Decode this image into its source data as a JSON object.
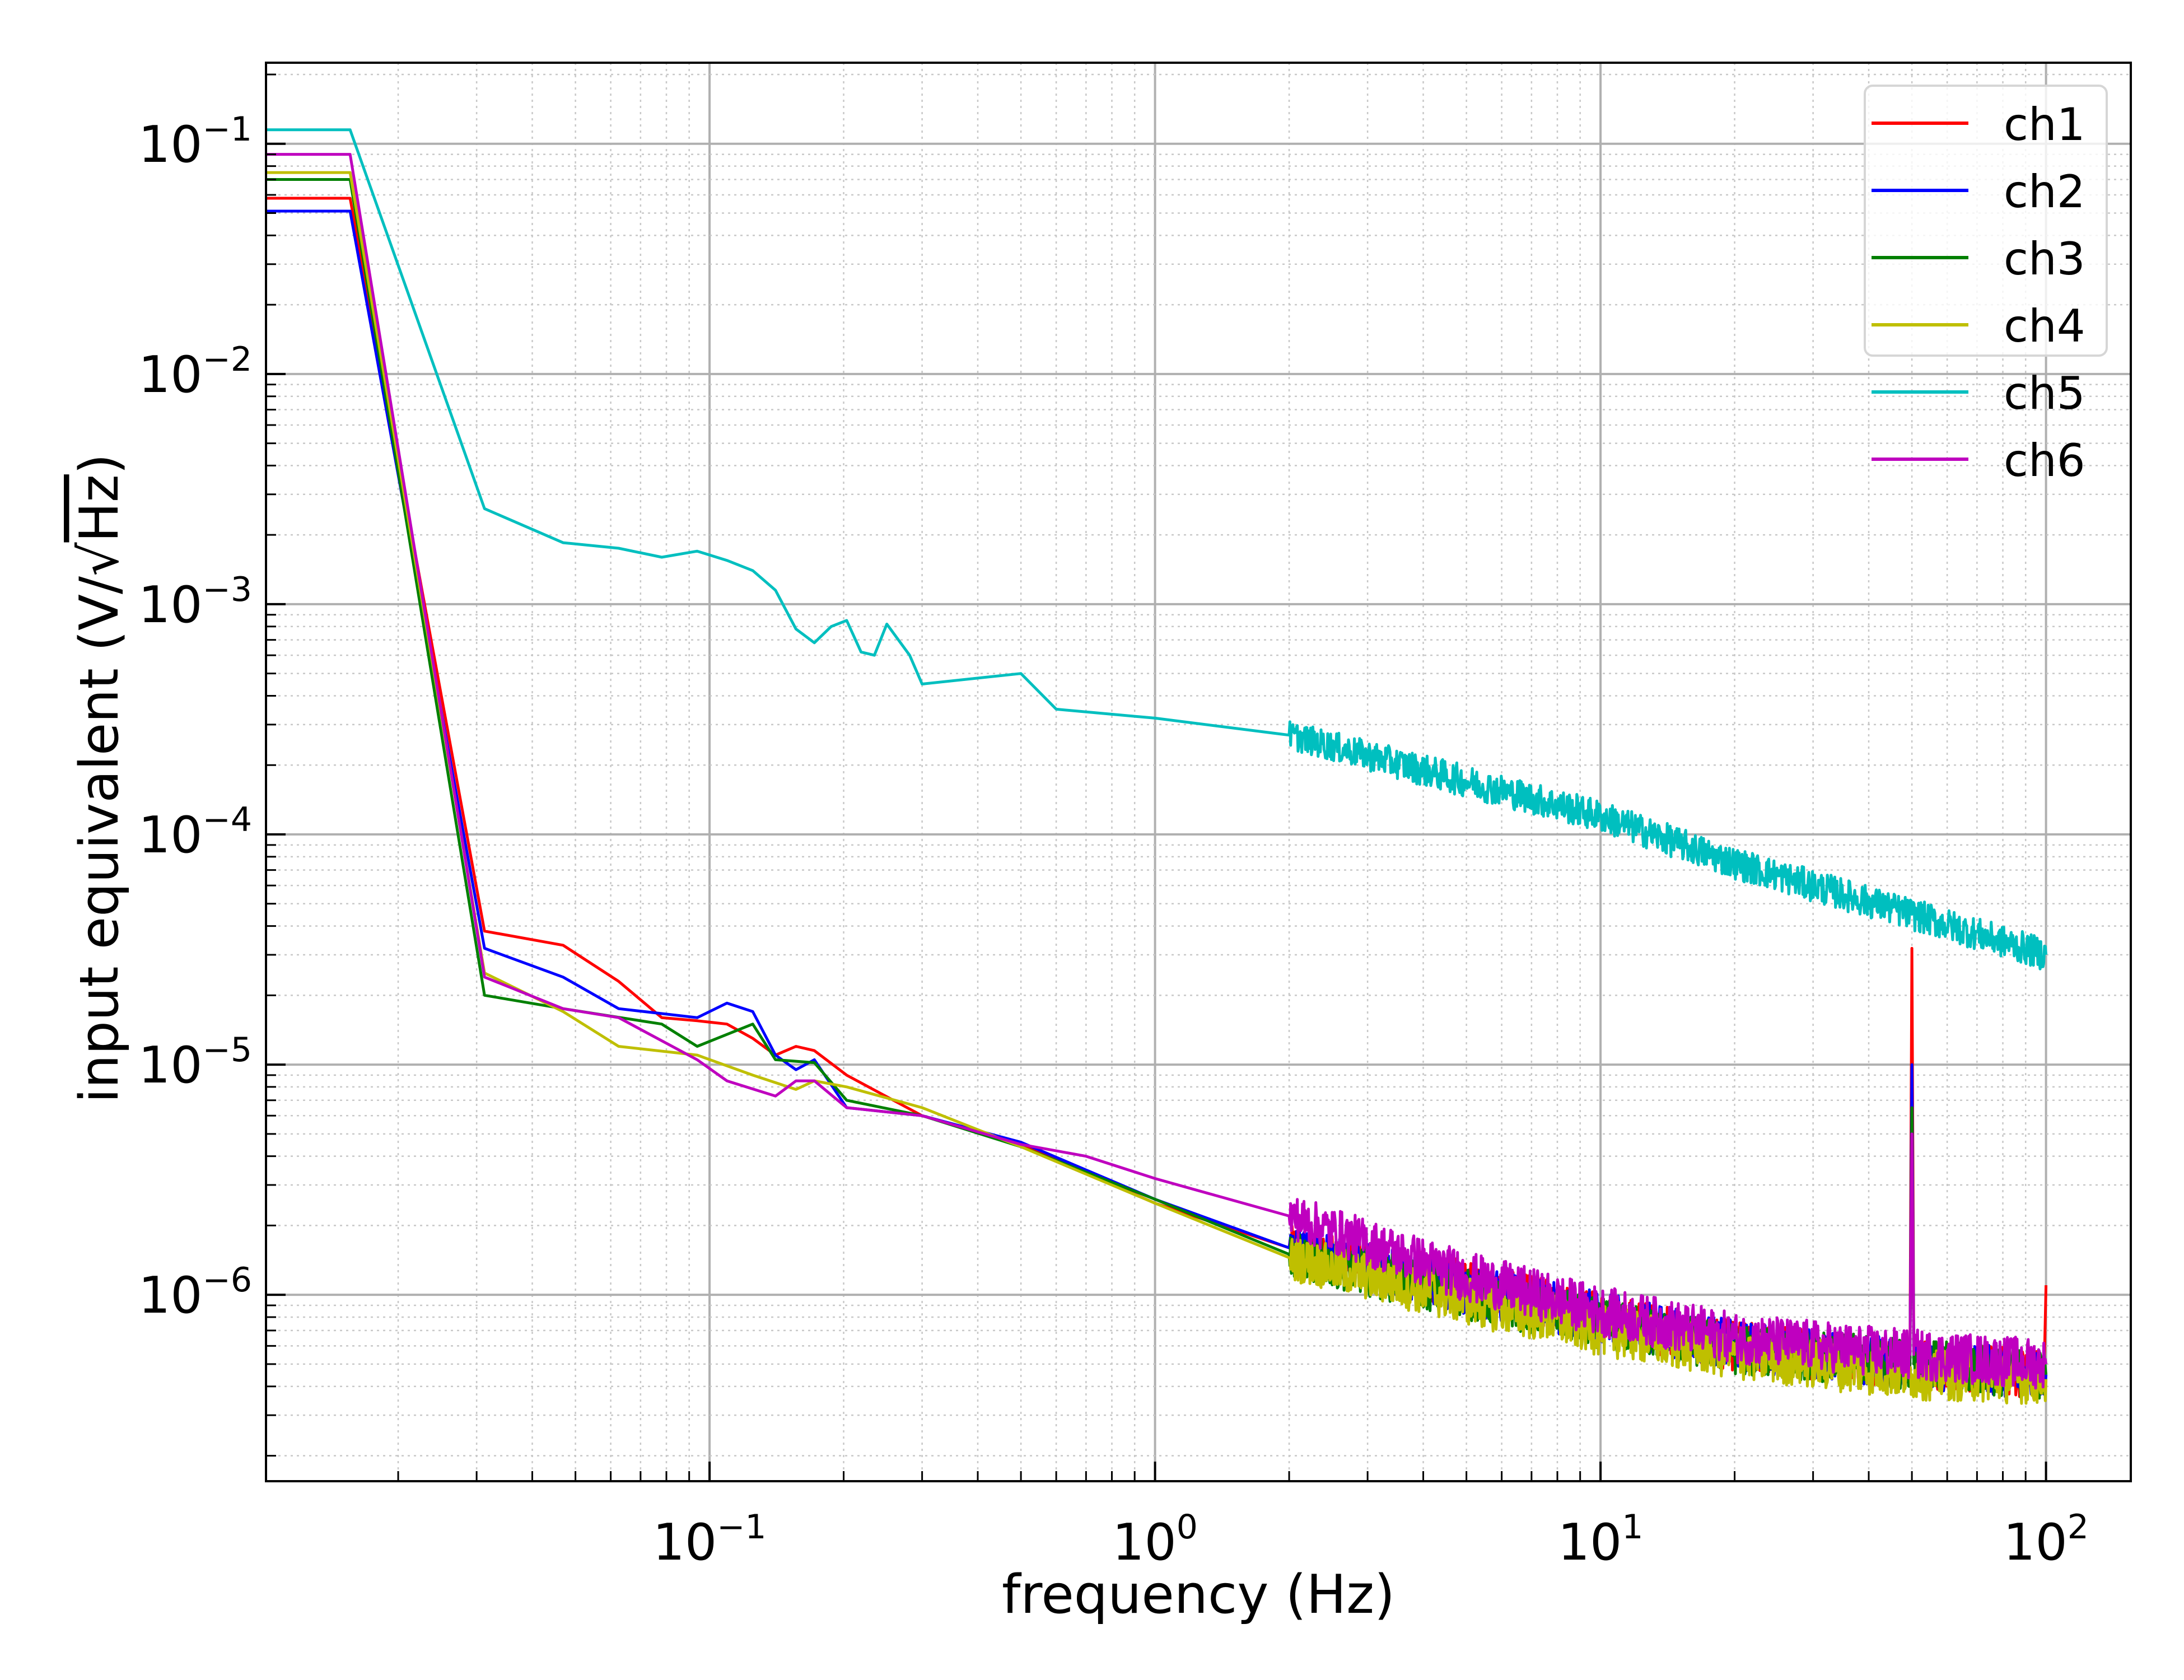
{
  "chart_data": {
    "type": "line",
    "title": "",
    "xlabel": "frequency (Hz)",
    "ylabel": {
      "prefix": "input equivalent (V/√",
      "radicand": "Hz",
      "suffix": ")"
    },
    "xscale": "log",
    "yscale": "log",
    "xlim": [
      0.0101,
      155
    ],
    "ylim": [
      1.55e-07,
      0.225
    ],
    "grid": {
      "major": true,
      "minor": true
    },
    "legend_placement": "top-right",
    "x_ticks": [
      {
        "value": 0.1,
        "base": "10",
        "exp": "−1"
      },
      {
        "value": 1,
        "base": "10",
        "exp": "0"
      },
      {
        "value": 10,
        "base": "10",
        "exp": "1"
      },
      {
        "value": 100,
        "base": "10",
        "exp": "2"
      }
    ],
    "y_ticks": [
      {
        "value": 0.1,
        "base": "10",
        "exp": "−1"
      },
      {
        "value": 0.01,
        "base": "10",
        "exp": "−2"
      },
      {
        "value": 0.001,
        "base": "10",
        "exp": "−3"
      },
      {
        "value": 0.0001,
        "base": "10",
        "exp": "−4"
      },
      {
        "value": 1e-05,
        "base": "10",
        "exp": "−5"
      },
      {
        "value": 1e-06,
        "base": "10",
        "exp": "−6"
      }
    ],
    "series": [
      {
        "name": "ch1",
        "color": "#ff0000",
        "points": [
          [
            0.0101,
            0.058
          ],
          [
            0.0156,
            0.058
          ],
          [
            0.03125,
            3.8e-05
          ],
          [
            0.0469,
            3.3e-05
          ],
          [
            0.0625,
            2.3e-05
          ],
          [
            0.0781,
            1.6e-05
          ],
          [
            0.0938,
            1.55e-05
          ],
          [
            0.1094,
            1.5e-05
          ],
          [
            0.125,
            1.3e-05
          ],
          [
            0.1406,
            1.1e-05
          ],
          [
            0.1563,
            1.2e-05
          ],
          [
            0.1719,
            1.15e-05
          ],
          [
            0.2031,
            9e-06
          ],
          [
            0.3,
            6e-06
          ],
          [
            0.5,
            4.5e-06
          ],
          [
            1,
            2.5e-06
          ],
          [
            2,
            1.6e-06
          ],
          [
            5,
            1.1e-06
          ],
          [
            10,
            8e-07
          ],
          [
            20,
            6e-07
          ],
          [
            49.5,
            5e-07
          ],
          [
            50,
            3.2e-05
          ],
          [
            50.5,
            5e-07
          ],
          [
            99,
            4.5e-07
          ],
          [
            100,
            1.1e-06
          ]
        ]
      },
      {
        "name": "ch2",
        "color": "#0000ff",
        "points": [
          [
            0.0101,
            0.051
          ],
          [
            0.0156,
            0.051
          ],
          [
            0.03125,
            3.2e-05
          ],
          [
            0.0469,
            2.4e-05
          ],
          [
            0.0625,
            1.75e-05
          ],
          [
            0.0938,
            1.6e-05
          ],
          [
            0.1094,
            1.85e-05
          ],
          [
            0.125,
            1.7e-05
          ],
          [
            0.1406,
            1.1e-05
          ],
          [
            0.1563,
            9.5e-06
          ],
          [
            0.1719,
            1.05e-05
          ],
          [
            0.2031,
            6.5e-06
          ],
          [
            0.3,
            6e-06
          ],
          [
            0.5,
            4.6e-06
          ],
          [
            1,
            2.6e-06
          ],
          [
            2,
            1.6e-06
          ],
          [
            5,
            1.05e-06
          ],
          [
            10,
            8e-07
          ],
          [
            20,
            6e-07
          ],
          [
            49.5,
            5e-07
          ],
          [
            50,
            1e-05
          ],
          [
            50.5,
            5e-07
          ],
          [
            100,
            4.5e-07
          ]
        ]
      },
      {
        "name": "ch3",
        "color": "#008000",
        "points": [
          [
            0.0101,
            0.07
          ],
          [
            0.0156,
            0.07
          ],
          [
            0.03125,
            2e-05
          ],
          [
            0.0469,
            1.75e-05
          ],
          [
            0.0781,
            1.5e-05
          ],
          [
            0.0938,
            1.2e-05
          ],
          [
            0.125,
            1.5e-05
          ],
          [
            0.1406,
            1.05e-05
          ],
          [
            0.1719,
            1.02e-05
          ],
          [
            0.2031,
            7e-06
          ],
          [
            0.3,
            6e-06
          ],
          [
            0.5,
            4.4e-06
          ],
          [
            1,
            2.6e-06
          ],
          [
            2,
            1.5e-06
          ],
          [
            5,
            1e-06
          ],
          [
            10,
            7.5e-07
          ],
          [
            20,
            5.8e-07
          ],
          [
            49.5,
            5e-07
          ],
          [
            50,
            6.5e-06
          ],
          [
            50.5,
            5e-07
          ],
          [
            100,
            4.5e-07
          ]
        ]
      },
      {
        "name": "ch4",
        "color": "#bfbf00",
        "points": [
          [
            0.0101,
            0.075
          ],
          [
            0.0156,
            0.075
          ],
          [
            0.03125,
            2.5e-05
          ],
          [
            0.0469,
            1.7e-05
          ],
          [
            0.0625,
            1.2e-05
          ],
          [
            0.0938,
            1.1e-05
          ],
          [
            0.125,
            9e-06
          ],
          [
            0.1563,
            7.8e-06
          ],
          [
            0.1719,
            8.5e-06
          ],
          [
            0.2031,
            8e-06
          ],
          [
            0.3,
            6.5e-06
          ],
          [
            0.5,
            4.4e-06
          ],
          [
            1,
            2.5e-06
          ],
          [
            2,
            1.45e-06
          ],
          [
            5,
            9.5e-07
          ],
          [
            10,
            7e-07
          ],
          [
            20,
            5.5e-07
          ],
          [
            50,
            4.5e-07
          ],
          [
            100,
            4.3e-07
          ]
        ]
      },
      {
        "name": "ch5",
        "color": "#00bfbf",
        "points": [
          [
            0.0101,
            0.115
          ],
          [
            0.0156,
            0.115
          ],
          [
            0.03125,
            0.0026
          ],
          [
            0.0469,
            0.00185
          ],
          [
            0.0625,
            0.00175
          ],
          [
            0.0781,
            0.0016
          ],
          [
            0.0938,
            0.0017
          ],
          [
            0.1094,
            0.00155
          ],
          [
            0.125,
            0.0014
          ],
          [
            0.1406,
            0.00115
          ],
          [
            0.1563,
            0.00078
          ],
          [
            0.1719,
            0.00068
          ],
          [
            0.1875,
            0.0008
          ],
          [
            0.2031,
            0.00085
          ],
          [
            0.2188,
            0.00062
          ],
          [
            0.2344,
            0.0006
          ],
          [
            0.25,
            0.00082
          ],
          [
            0.2813,
            0.0006
          ],
          [
            0.3,
            0.00045
          ],
          [
            0.5,
            0.0005
          ],
          [
            0.6,
            0.00035
          ],
          [
            1,
            0.00032
          ],
          [
            2,
            0.00027
          ],
          [
            5,
            0.00017
          ],
          [
            10,
            0.00012
          ],
          [
            20,
            7.5e-05
          ],
          [
            50,
            4.5e-05
          ],
          [
            100,
            3e-05
          ]
        ]
      },
      {
        "name": "ch6",
        "color": "#bf00bf",
        "points": [
          [
            0.0101,
            0.09
          ],
          [
            0.0156,
            0.09
          ],
          [
            0.03125,
            2.4e-05
          ],
          [
            0.0469,
            1.75e-05
          ],
          [
            0.0625,
            1.6e-05
          ],
          [
            0.0938,
            1.05e-05
          ],
          [
            0.1094,
            8.5e-06
          ],
          [
            0.1406,
            7.3e-06
          ],
          [
            0.1563,
            8.5e-06
          ],
          [
            0.1719,
            8.5e-06
          ],
          [
            0.2031,
            6.5e-06
          ],
          [
            0.3,
            6e-06
          ],
          [
            0.5,
            4.5e-06
          ],
          [
            0.7,
            4e-06
          ],
          [
            1,
            3.2e-06
          ],
          [
            2,
            2.2e-06
          ],
          [
            5,
            1.2e-06
          ],
          [
            10,
            8.5e-07
          ],
          [
            20,
            6.5e-07
          ],
          [
            49.5,
            5.5e-07
          ],
          [
            50,
            5e-06
          ],
          [
            50.5,
            5.5e-07
          ],
          [
            100,
            5e-07
          ]
        ]
      }
    ]
  }
}
